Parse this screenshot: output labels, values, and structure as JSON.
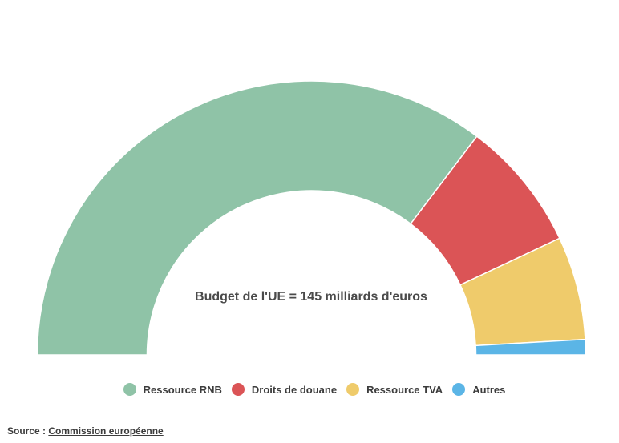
{
  "chart_data": {
    "type": "pie",
    "variant": "semi-donut",
    "center_label": "Budget de l'UE = 145 milliards d'euros",
    "series": [
      {
        "name": "Ressource RNB",
        "value": 70.6,
        "color": "#8fc3a7"
      },
      {
        "name": "Droits de douane",
        "value": 15.4,
        "color": "#db5456"
      },
      {
        "name": "Ressource TVA",
        "value": 12.2,
        "color": "#efcb6b"
      },
      {
        "name": "Autres",
        "value": 1.8,
        "color": "#5bb5e6"
      }
    ],
    "legend_position": "bottom"
  },
  "source": {
    "prefix": "Source : ",
    "link_text": "Commission européenne"
  }
}
